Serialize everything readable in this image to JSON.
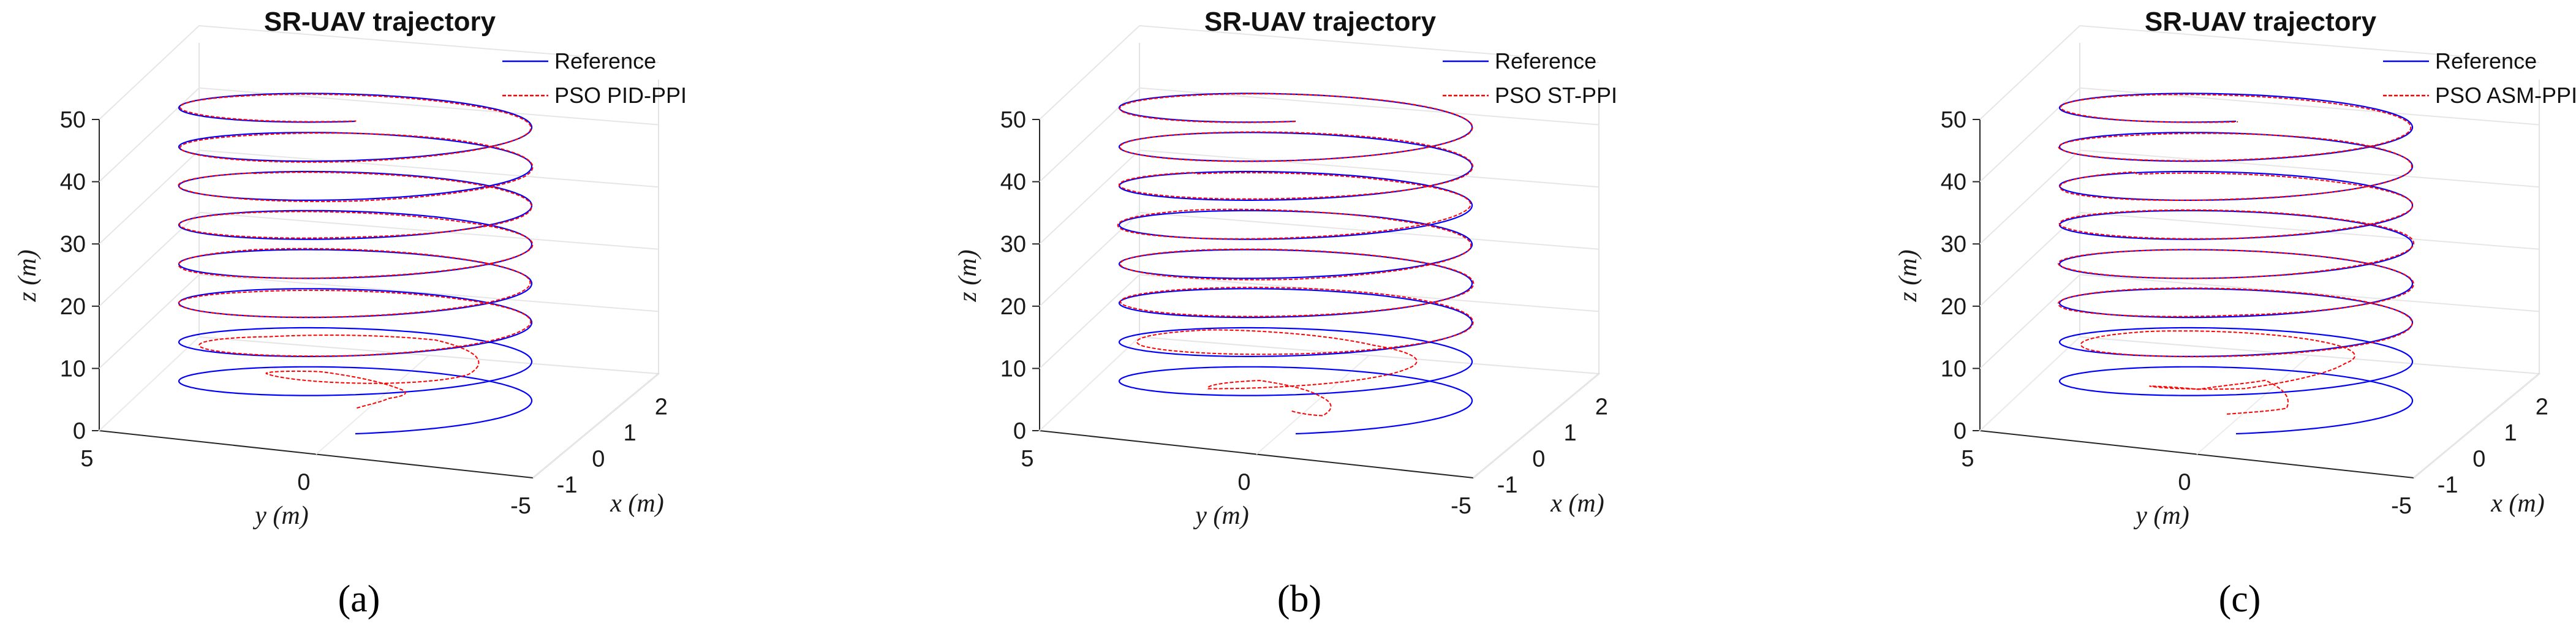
{
  "figure": {
    "panel_labels": [
      "(a)",
      "(b)",
      "(c)"
    ]
  },
  "chart_data": [
    {
      "type": "line",
      "title": "SR-UAV trajectory",
      "xlabel": "x (m)",
      "ylabel": "y (m)",
      "zlabel": "z (m)",
      "xlim": [
        -2,
        2
      ],
      "ylim": [
        -5,
        5
      ],
      "zlim": [
        0,
        50
      ],
      "x_ticks": [
        "-1",
        "0",
        "1",
        "2"
      ],
      "y_ticks": [
        "5",
        "0",
        "-5"
      ],
      "z_ticks": [
        "0",
        "10",
        "20",
        "30",
        "40",
        "50"
      ],
      "reference": {
        "name": "Reference",
        "color": "#0000ff",
        "radius": 4.8,
        "turns": 8,
        "z_start": 2,
        "z_end": 52
      },
      "series": [
        {
          "name": "Reference",
          "color": "#0000ff"
        },
        {
          "name": "PSO PID-PPI",
          "color": "#ff0000"
        }
      ],
      "legend_location": "top-right"
    },
    {
      "type": "line",
      "title": "SR-UAV trajectory",
      "xlabel": "x (m)",
      "ylabel": "y (m)",
      "zlabel": "z (m)",
      "xlim": [
        -2,
        2
      ],
      "ylim": [
        -5,
        5
      ],
      "zlim": [
        0,
        50
      ],
      "x_ticks": [
        "-1",
        "0",
        "1",
        "2"
      ],
      "y_ticks": [
        "5",
        "0",
        "-5"
      ],
      "z_ticks": [
        "0",
        "10",
        "20",
        "30",
        "40",
        "50"
      ],
      "reference": {
        "name": "Reference",
        "color": "#0000ff",
        "radius": 4.8,
        "turns": 8,
        "z_start": 2,
        "z_end": 52
      },
      "series": [
        {
          "name": "Reference",
          "color": "#0000ff"
        },
        {
          "name": "PSO ST-PPI",
          "color": "#ff0000"
        }
      ],
      "legend_location": "top-right"
    },
    {
      "type": "line",
      "title": "SR-UAV trajectory",
      "xlabel": "x (m)",
      "ylabel": "y (m)",
      "zlabel": "z (m)",
      "xlim": [
        -2,
        2
      ],
      "ylim": [
        -5,
        5
      ],
      "zlim": [
        0,
        50
      ],
      "x_ticks": [
        "-1",
        "0",
        "1",
        "2"
      ],
      "y_ticks": [
        "5",
        "0",
        "-5"
      ],
      "z_ticks": [
        "0",
        "10",
        "20",
        "30",
        "40",
        "50"
      ],
      "reference": {
        "name": "Reference",
        "color": "#0000ff",
        "radius": 4.8,
        "turns": 8,
        "z_start": 2,
        "z_end": 52
      },
      "series": [
        {
          "name": "Reference",
          "color": "#0000ff"
        },
        {
          "name": "PSO ASM-PPI",
          "color": "#ff0000"
        }
      ],
      "legend_location": "top-right"
    }
  ]
}
